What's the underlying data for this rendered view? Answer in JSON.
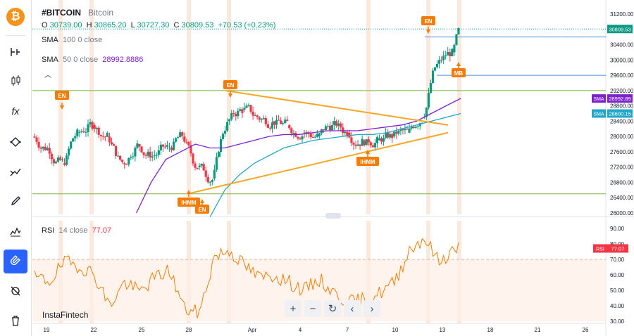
{
  "sidebar": {
    "logo_icon": "bitcoin-icon",
    "tools": [
      "cursor-icon",
      "horizontal-line-icon",
      "candles-icon",
      "fx-icon",
      "path-icon",
      "patterns-icon",
      "brush-icon",
      "prediction-icon",
      "magnet-icon",
      "hide-icon",
      "delete-icon"
    ],
    "active_tool": "magnet-icon"
  },
  "header": {
    "symbol": "#BITCOIN",
    "name": "Bitcoin",
    "ohlc": {
      "o_label": "O",
      "o": "30739.00",
      "h_label": "H",
      "h": "30865.20",
      "l_label": "L",
      "l": "30727.30",
      "c_label": "C",
      "c": "30809.53",
      "change": "+70.53 (+0.23%)"
    }
  },
  "indicators": {
    "sma100": {
      "name": "SMA",
      "params": "100 0 close",
      "value": ""
    },
    "sma50": {
      "name": "SMA",
      "params": "50 0 close",
      "value": "28992.8886"
    },
    "rsi": {
      "name": "RSI",
      "params": "14 close",
      "value": "77.07"
    }
  },
  "price_axis": {
    "ticks": [
      "31200.00",
      "30400.00",
      "30000.00",
      "29600.00",
      "29200.00",
      "28800.00",
      "28400.00",
      "28000.00",
      "27600.00",
      "27200.00",
      "26800.00",
      "26400.00",
      "26000.00"
    ],
    "last_price_tag": "30809.53",
    "sma_tags": [
      {
        "label": "SMA",
        "value": "28992.89",
        "color": "#7e22ce"
      },
      {
        "label": "SMA",
        "value": "28600.15",
        "color": "#22a7c9"
      }
    ]
  },
  "rsi_axis": {
    "ticks": [
      "90.00",
      "80.00",
      "70.00",
      "60.00",
      "50.00",
      "40.00",
      "30.00"
    ],
    "tag_label": "RSI",
    "tag_value": "77.07"
  },
  "time_axis": [
    "19",
    "22",
    "25",
    "28",
    "Apr",
    "4",
    "7",
    "10",
    "13",
    "18",
    "21",
    "26"
  ],
  "annotations": {
    "en": "EN",
    "ihmm": "IHMM",
    "mb": "MB"
  },
  "brand": "InstaFintech",
  "nav_buttons": [
    {
      "icon": "zoom-in-icon",
      "glyph": "+"
    },
    {
      "icon": "zoom-out-icon",
      "glyph": "−"
    },
    {
      "icon": "reset-icon",
      "glyph": "↻"
    },
    {
      "icon": "scroll-left-icon",
      "glyph": "‹"
    },
    {
      "icon": "scroll-right-icon",
      "glyph": "›"
    }
  ],
  "colors": {
    "up": "#089981",
    "down": "#f23645",
    "sma100": "#22a7c9",
    "sma50": "#7e22ce",
    "triangle": "#f5a623",
    "annotation": "#f57c00",
    "rsi_line": "#f57c00",
    "green_level": "#7cb342",
    "blue_level": "#4a90d9"
  },
  "chart_data": {
    "type": "candlestick",
    "x": [
      "Mar 17",
      "Mar 18",
      "Mar 19",
      "Mar 20",
      "Mar 21",
      "Mar 22",
      "Mar 23",
      "Mar 24",
      "Mar 25",
      "Mar 26",
      "Mar 27",
      "Mar 28",
      "Mar 29",
      "Mar 30",
      "Mar 31",
      "Apr 1",
      "Apr 2",
      "Apr 3",
      "Apr 4",
      "Apr 5",
      "Apr 6",
      "Apr 7",
      "Apr 8",
      "Apr 9",
      "Apr 10",
      "Apr 11",
      "Apr 12",
      "Apr 13",
      "Apr 14"
    ],
    "close": [
      27700,
      27300,
      28100,
      28300,
      28000,
      27300,
      27800,
      27500,
      27700,
      28000,
      27200,
      26900,
      28400,
      28700,
      28500,
      28400,
      28300,
      28100,
      28000,
      28300,
      28100,
      27900,
      27900,
      28000,
      28100,
      28500,
      29900,
      30200,
      30809.53
    ],
    "sma100": [
      null,
      null,
      null,
      null,
      null,
      null,
      null,
      null,
      null,
      null,
      null,
      25900,
      26600,
      27000,
      27300,
      27500,
      27700,
      27800,
      27900,
      27950,
      28000,
      28050,
      28050,
      28100,
      28200,
      28300,
      28400,
      28500,
      28600.15
    ],
    "sma50": [
      null,
      null,
      null,
      null,
      null,
      null,
      26000,
      26800,
      27400,
      27600,
      27800,
      27700,
      27700,
      27800,
      27900,
      28000,
      28050,
      28050,
      28100,
      28150,
      28150,
      28150,
      28200,
      28250,
      28300,
      28400,
      28600,
      28800,
      28992.89
    ],
    "horizontal_levels": [
      29200,
      26500
    ],
    "resistance_levels": [
      30600,
      29600
    ],
    "ylim": [
      26000,
      31200
    ],
    "rsi": [
      58,
      56,
      68,
      66,
      60,
      40,
      55,
      49,
      58,
      63,
      38,
      35,
      72,
      76,
      66,
      58,
      60,
      55,
      50,
      57,
      48,
      42,
      44,
      48,
      55,
      76,
      84,
      68,
      77.07
    ],
    "rsi_ylim": [
      30,
      90
    ],
    "rsi_reference": [
      70
    ]
  }
}
